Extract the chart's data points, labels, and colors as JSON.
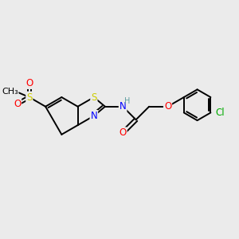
{
  "background_color": "#ebebeb",
  "bond_color": "#000000",
  "atom_colors": {
    "S": "#cccc00",
    "N": "#0000ff",
    "O": "#ff0000",
    "Cl": "#00aa00",
    "H_N": "#5f9ea0"
  },
  "lw": 1.4,
  "font_size": 8.5,
  "figsize": [
    3.0,
    3.0
  ],
  "dpi": 100
}
